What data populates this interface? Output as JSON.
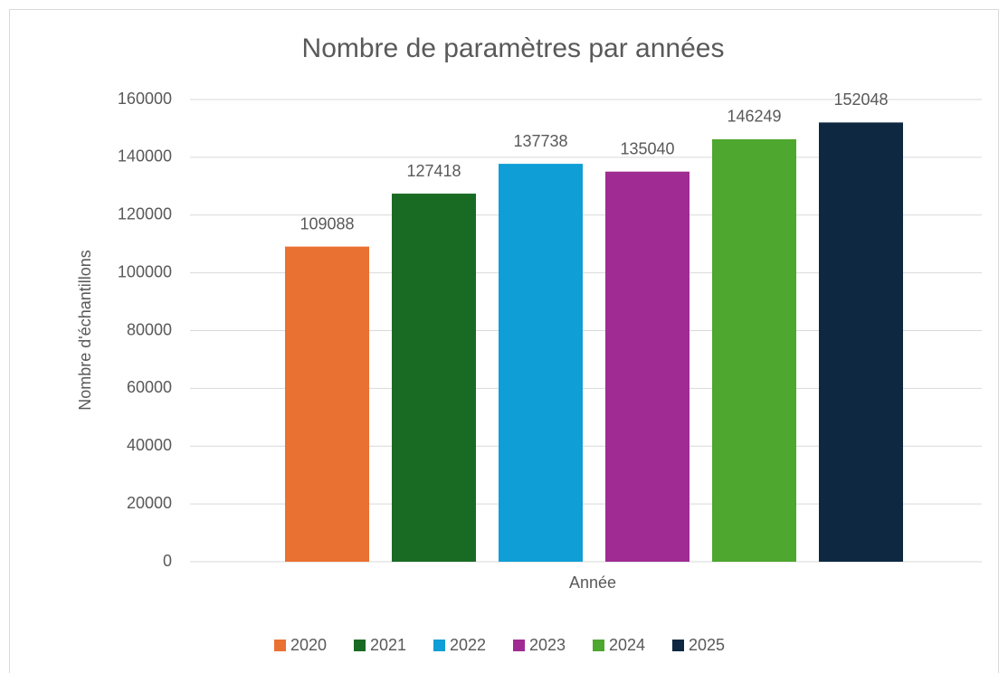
{
  "chart_data": {
    "type": "bar",
    "title": "Nombre de paramètres par années",
    "x_label": "Année",
    "y_label": "Nombre d'échantillons",
    "categories": [
      null
    ],
    "series": [
      {
        "name": "2020",
        "color": "#e97132",
        "values": [
          109088
        ]
      },
      {
        "name": "2021",
        "color": "#196b24",
        "values": [
          127418
        ]
      },
      {
        "name": "2022",
        "color": "#0f9ed5",
        "values": [
          137738
        ]
      },
      {
        "name": "2023",
        "color": "#a02b93",
        "values": [
          135040
        ]
      },
      {
        "name": "2024",
        "color": "#4ea72e",
        "values": [
          146249
        ]
      },
      {
        "name": "2025",
        "color": "#0e2841",
        "values": [
          152048
        ]
      }
    ],
    "ylim": [
      0,
      160000
    ],
    "yticks": [
      0,
      20000,
      40000,
      60000,
      80000,
      100000,
      120000,
      140000,
      160000
    ],
    "grid": true,
    "legend": "bottom"
  }
}
